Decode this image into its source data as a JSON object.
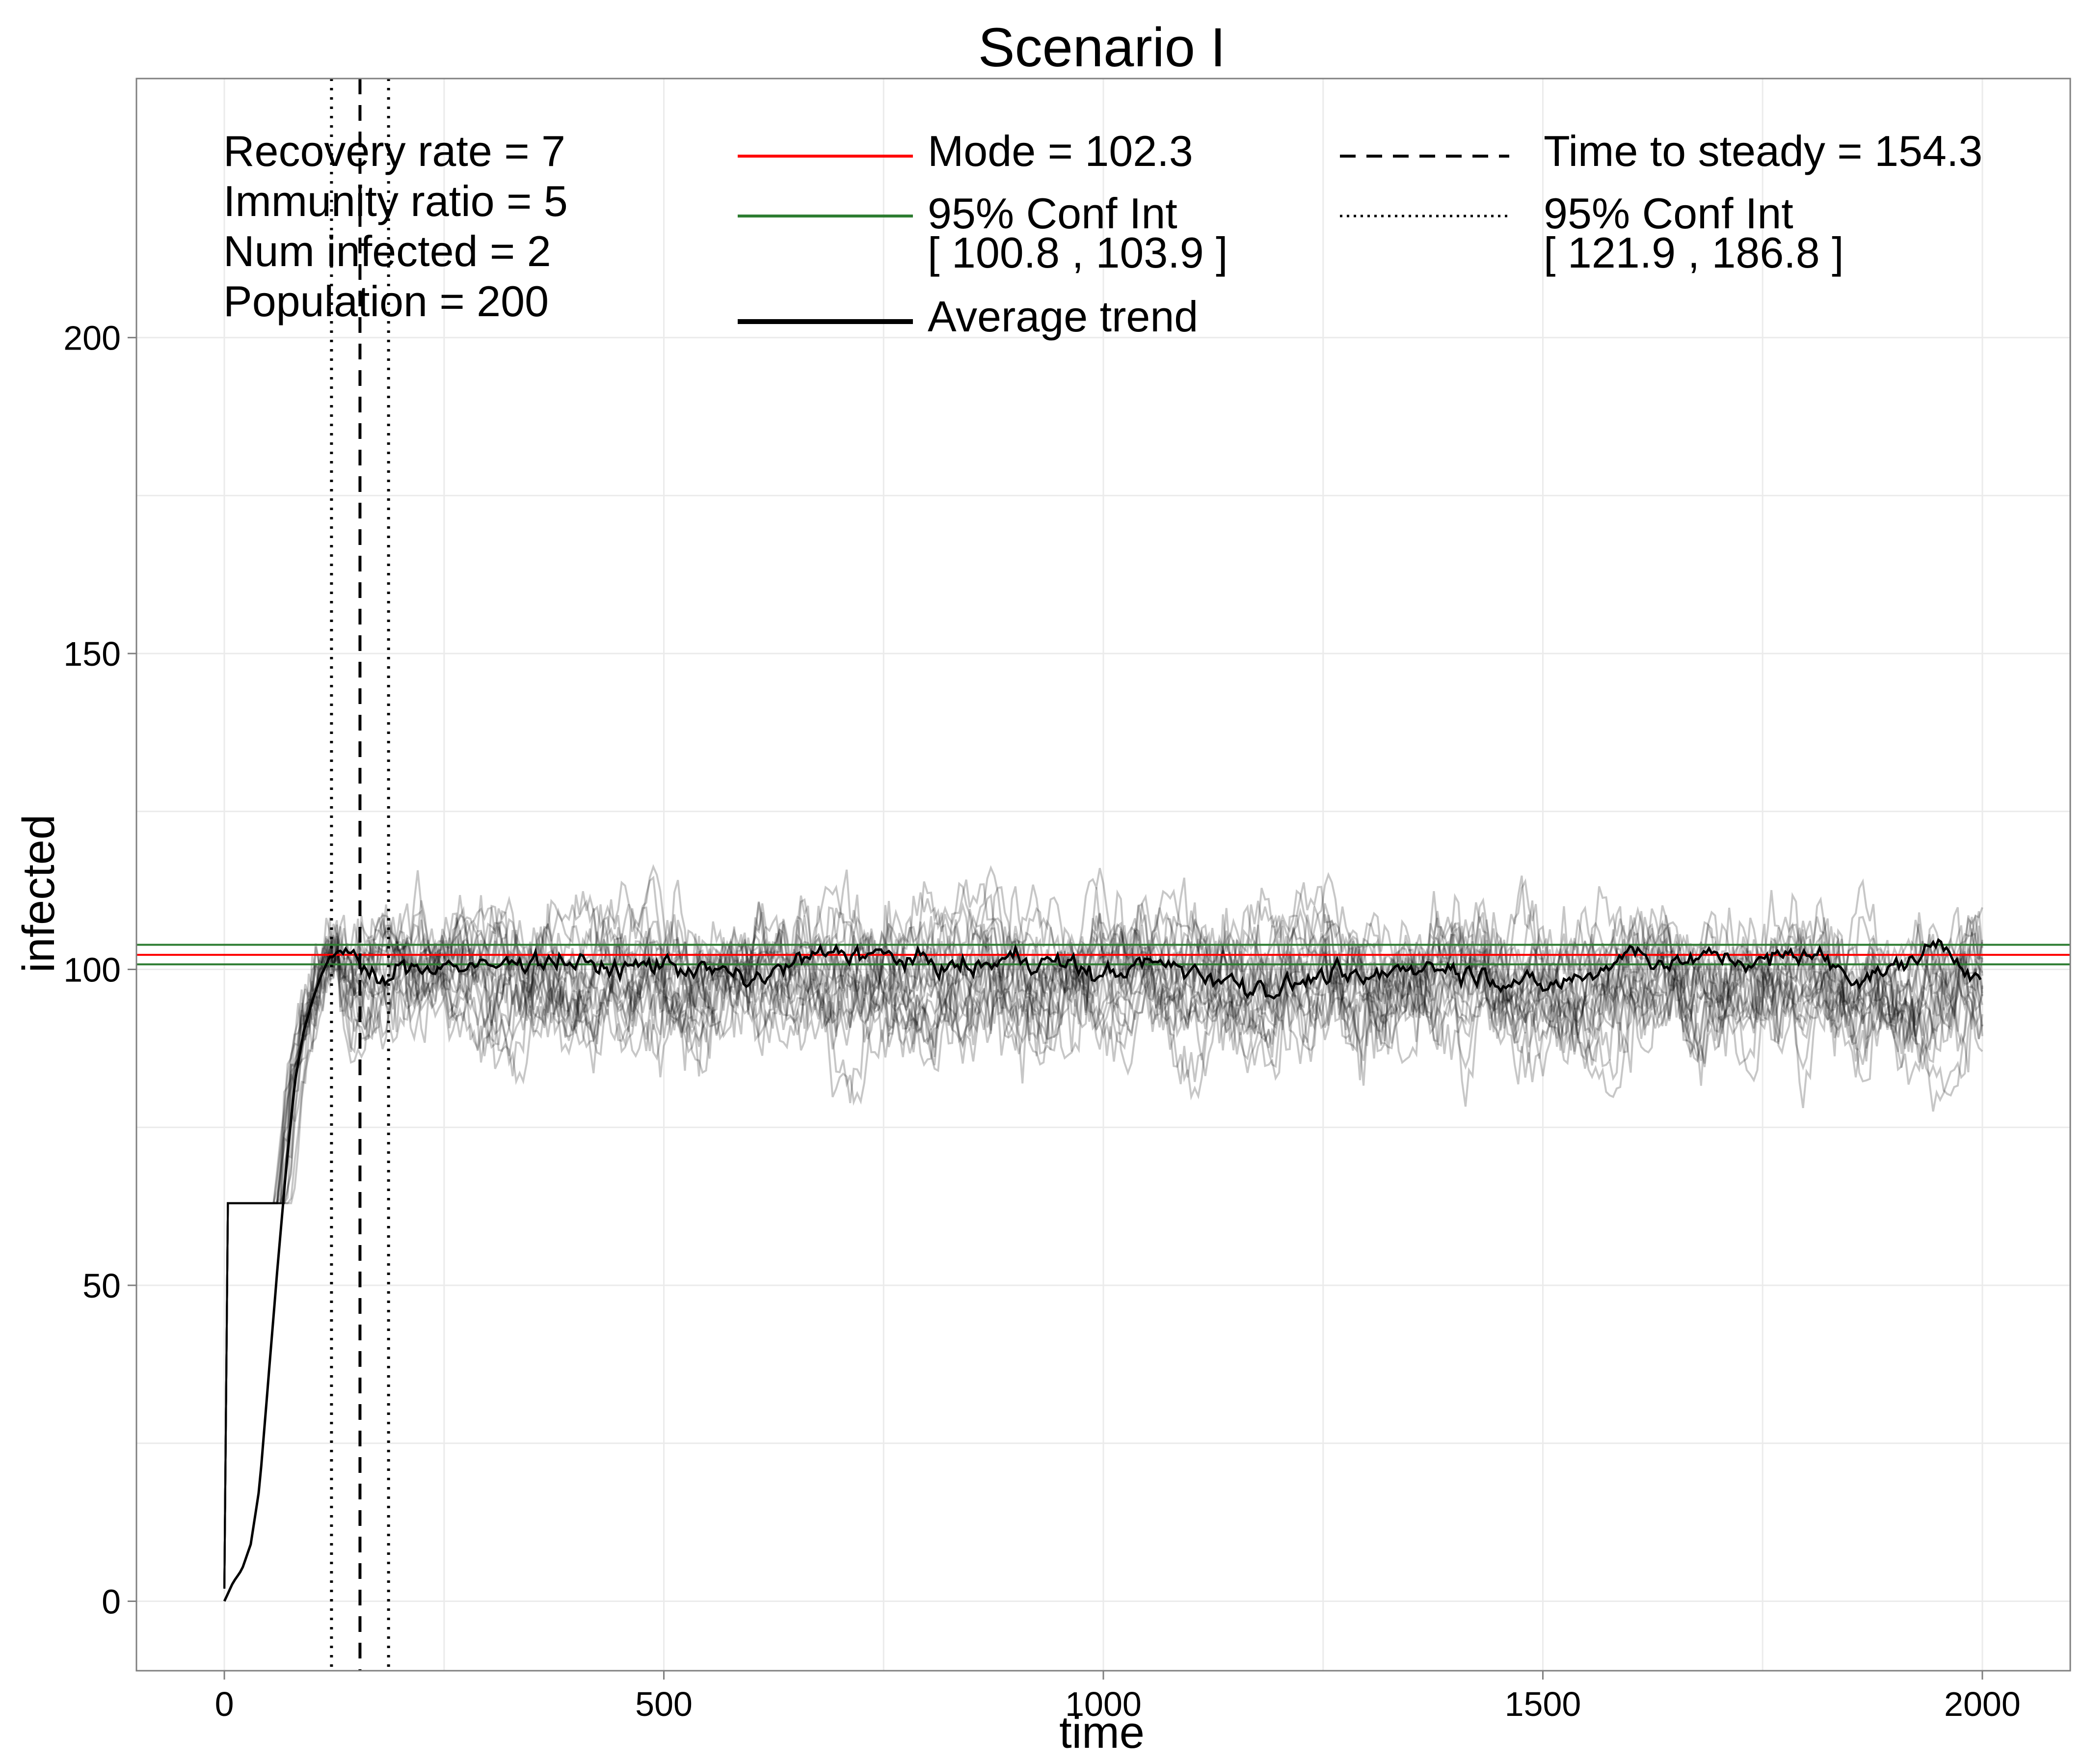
{
  "chart_data": {
    "type": "line",
    "title": "Scenario I",
    "xlabel": "time",
    "ylabel": "infected",
    "xlim": [
      -100,
      2100
    ],
    "ylim": [
      -11,
      241
    ],
    "x_ticks": [
      0,
      500,
      1000,
      1500,
      2000
    ],
    "y_ticks": [
      0,
      50,
      100,
      150,
      200
    ],
    "grid": true,
    "parameters": [
      "Recovery rate = 7",
      "Immunity ratio = 5",
      "Num infected = 2",
      "Population = 200"
    ],
    "legend": {
      "placement": "top",
      "entries": [
        {
          "label": "Mode = 102.3",
          "sub": "",
          "style": "solid",
          "color": "#ff0000"
        },
        {
          "label": "95% Conf Int",
          "sub": "[ 100.8 , 103.9 ]",
          "style": "solid",
          "color": "#2e7d32"
        },
        {
          "label": "Average trend",
          "sub": "",
          "style": "solid-thick",
          "color": "#000000"
        },
        {
          "label": "Time to steady = 154.3",
          "sub": "",
          "style": "dashed",
          "color": "#000000"
        },
        {
          "label": "95% Conf Int",
          "sub": "[ 121.9 , 186.8 ]",
          "style": "dotted",
          "color": "#000000"
        }
      ]
    },
    "hlines": [
      {
        "name": "Mode",
        "y": 102.3,
        "color": "#ff0000"
      },
      {
        "name": "95% Conf Int lower",
        "y": 100.8,
        "color": "#2e7d32"
      },
      {
        "name": "95% Conf Int upper",
        "y": 103.9,
        "color": "#2e7d32"
      }
    ],
    "vlines": [
      {
        "name": "Time to steady",
        "x": 154.3,
        "style": "dashed"
      },
      {
        "name": "95% Conf Int lower",
        "x": 121.9,
        "style": "dotted"
      },
      {
        "name": "95% Conf Int upper",
        "x": 186.8,
        "style": "dotted"
      }
    ],
    "average_trend": {
      "x": [
        0,
        10,
        20,
        30,
        40,
        50,
        60,
        70,
        80,
        90,
        100,
        110,
        120,
        130,
        140,
        150,
        160,
        170,
        180,
        190,
        200,
        250,
        300,
        350,
        400,
        450,
        500,
        550,
        600,
        650,
        700,
        750,
        800,
        850,
        900,
        950,
        1000,
        1050,
        1100,
        1150,
        1200,
        1250,
        1300,
        1350,
        1400,
        1450,
        1500,
        1550,
        1600,
        1650,
        1700,
        1750,
        1800,
        1850,
        1900,
        1950,
        2000
      ],
      "y": [
        0,
        3,
        5,
        9,
        18,
        35,
        52,
        68,
        82,
        90,
        95,
        99,
        102,
        103,
        104,
        102,
        100,
        98,
        97,
        99,
        100,
        101,
        100,
        102,
        101,
        100,
        101,
        100,
        98,
        101,
        103,
        102,
        101,
        100,
        102,
        101,
        99,
        101,
        100,
        98,
        97,
        99,
        98,
        101,
        100,
        99,
        97,
        99,
        103,
        101,
        102,
        101,
        103,
        99,
        100,
        104,
        99
      ]
    },
    "simulation_runs": {
      "count": 20,
      "style": "semi-transparent grey",
      "steady_mean": 100,
      "range": [
        65,
        135
      ]
    }
  }
}
